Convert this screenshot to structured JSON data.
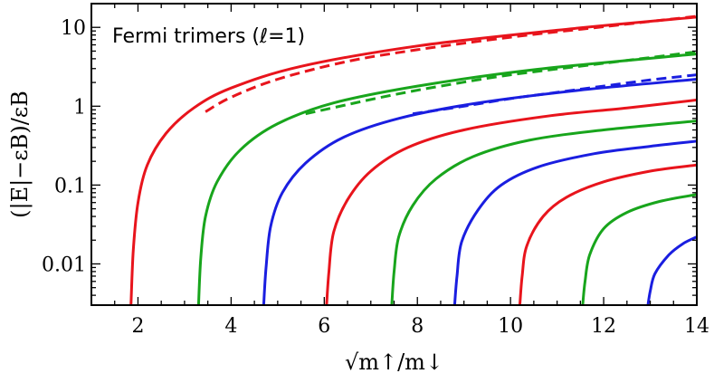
{
  "chart_data": {
    "type": "line",
    "title": "Fermi trimers (ℓ=1)",
    "xlabel": "√m↑/m↓",
    "ylabel": "(|E|−εB)/εB",
    "xlim": [
      1,
      14
    ],
    "ylim": [
      0.003,
      20
    ],
    "y_scale": "log",
    "grid": false,
    "x_ticks": [
      "2",
      "4",
      "6",
      "8",
      "10",
      "12",
      "14"
    ],
    "y_ticks": [
      "0.01",
      "0.1",
      "1",
      "10"
    ],
    "colors": {
      "red": "#e8141c",
      "green": "#18a51c",
      "blue": "#1a1ee0"
    },
    "series": [
      {
        "color": "red",
        "style": "solid",
        "x": [
          1.85,
          1.9,
          2.0,
          2.2,
          2.6,
          3.2,
          4.0,
          5.5,
          8.0,
          11.0,
          14.0
        ],
        "y": [
          0.003,
          0.015,
          0.06,
          0.18,
          0.45,
          0.95,
          1.7,
          3.2,
          5.8,
          9.2,
          13.5
        ]
      },
      {
        "color": "green",
        "style": "solid",
        "x": [
          3.3,
          3.35,
          3.45,
          3.7,
          4.2,
          5.0,
          6.2,
          8.0,
          10.5,
          14.0
        ],
        "y": [
          0.003,
          0.012,
          0.04,
          0.11,
          0.28,
          0.6,
          1.1,
          1.8,
          2.9,
          4.6
        ]
      },
      {
        "color": "blue",
        "style": "solid",
        "x": [
          4.7,
          4.75,
          4.85,
          5.1,
          5.6,
          6.4,
          7.6,
          9.3,
          11.5,
          14.0
        ],
        "y": [
          0.003,
          0.009,
          0.03,
          0.08,
          0.19,
          0.4,
          0.7,
          1.1,
          1.6,
          2.2
        ]
      },
      {
        "color": "red",
        "style": "solid",
        "x": [
          6.05,
          6.1,
          6.2,
          6.5,
          7.0,
          7.8,
          9.0,
          10.8,
          12.5,
          14.0
        ],
        "y": [
          0.003,
          0.008,
          0.025,
          0.065,
          0.15,
          0.3,
          0.5,
          0.75,
          0.95,
          1.2
        ]
      },
      {
        "color": "green",
        "style": "solid",
        "x": [
          7.45,
          7.5,
          7.6,
          7.9,
          8.4,
          9.2,
          10.4,
          12.0,
          14.0
        ],
        "y": [
          0.003,
          0.008,
          0.022,
          0.055,
          0.12,
          0.23,
          0.37,
          0.5,
          0.65
        ]
      },
      {
        "color": "blue",
        "style": "solid",
        "x": [
          8.8,
          8.85,
          8.95,
          9.3,
          9.8,
          10.6,
          11.8,
          13.0,
          14.0
        ],
        "y": [
          0.003,
          0.007,
          0.019,
          0.048,
          0.1,
          0.17,
          0.25,
          0.31,
          0.36
        ]
      },
      {
        "color": "red",
        "style": "solid",
        "x": [
          10.2,
          10.25,
          10.35,
          10.7,
          11.2,
          12.0,
          13.0,
          14.0
        ],
        "y": [
          0.003,
          0.007,
          0.017,
          0.04,
          0.07,
          0.11,
          0.15,
          0.18
        ]
      },
      {
        "color": "green",
        "style": "solid",
        "x": [
          11.55,
          11.6,
          11.7,
          12.0,
          12.5,
          13.2,
          14.0
        ],
        "y": [
          0.003,
          0.006,
          0.013,
          0.028,
          0.045,
          0.062,
          0.076
        ]
      },
      {
        "color": "blue",
        "style": "solid",
        "x": [
          12.95,
          13.0,
          13.1,
          13.4,
          13.7,
          14.0
        ],
        "y": [
          0.003,
          0.0045,
          0.0075,
          0.013,
          0.018,
          0.022
        ]
      },
      {
        "color": "red",
        "style": "dashed",
        "x": [
          3.45,
          4.0,
          5.0,
          6.5,
          8.0,
          10.0,
          12.0,
          14.0
        ],
        "y": [
          0.85,
          1.3,
          2.2,
          3.7,
          5.2,
          7.5,
          10.2,
          13.8
        ]
      },
      {
        "color": "green",
        "style": "dashed",
        "x": [
          5.6,
          6.5,
          7.5,
          8.5,
          10.0,
          12.0,
          14.0
        ],
        "y": [
          0.8,
          1.05,
          1.4,
          1.8,
          2.5,
          3.5,
          4.9
        ]
      },
      {
        "color": "blue",
        "style": "dashed",
        "x": [
          7.9,
          9.0,
          10.0,
          11.0,
          12.0,
          13.0,
          14.0
        ],
        "y": [
          0.8,
          1.0,
          1.25,
          1.5,
          1.8,
          2.15,
          2.5
        ]
      }
    ]
  }
}
